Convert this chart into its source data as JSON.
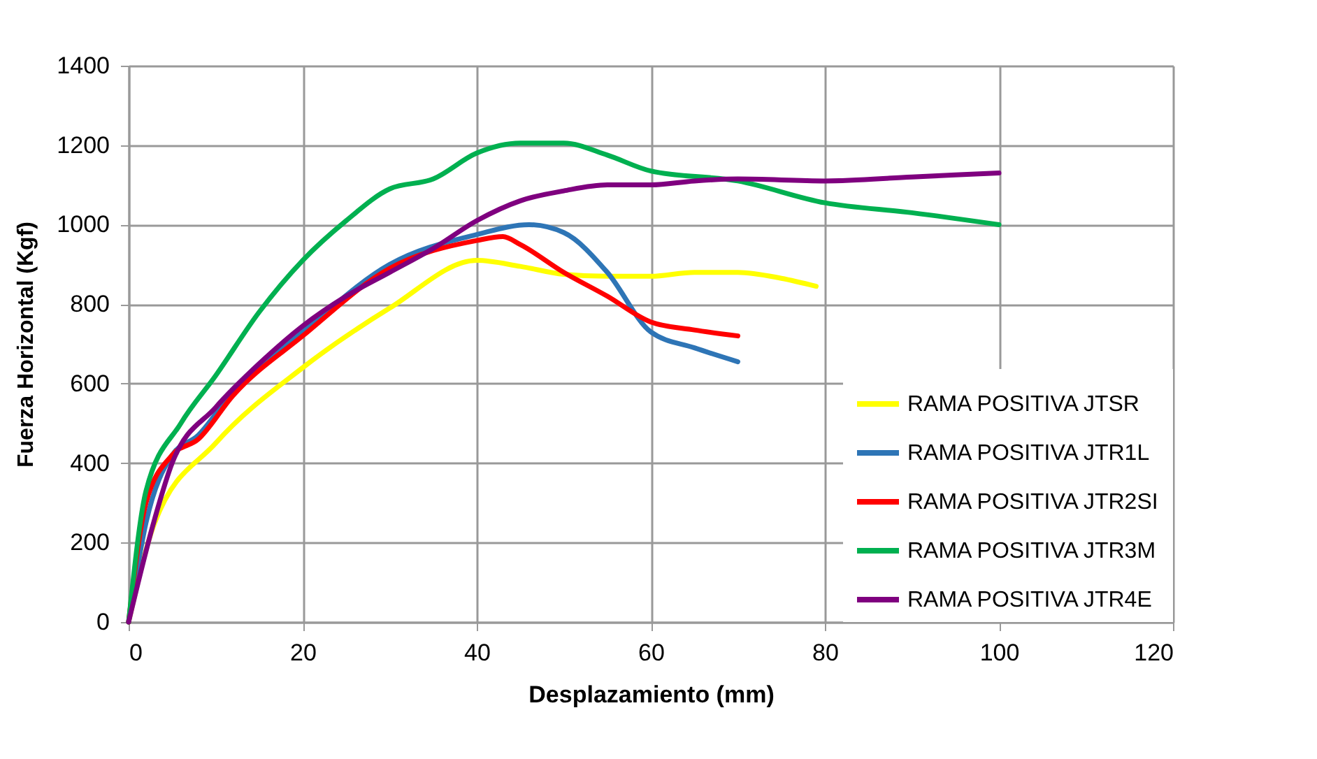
{
  "chart_data": {
    "type": "line",
    "xlabel": "Desplazamiento (mm)",
    "ylabel": "Fuerza Horizontal (Kgf)",
    "xlim": [
      0,
      120
    ],
    "xticks": [
      0,
      20,
      40,
      60,
      80,
      100,
      120
    ],
    "ylim": [
      0,
      1400
    ],
    "yticks": [
      0,
      200,
      400,
      600,
      800,
      1000,
      1200,
      1400
    ],
    "grid": true,
    "legend": "bottom right",
    "marker": "none",
    "line_style": "solid",
    "series": [
      {
        "name": "RAMA POSITIVA JTSR",
        "color": "#ffff00",
        "x": [
          0,
          3,
          10,
          20,
          30,
          40,
          45,
          50,
          55,
          60,
          65,
          70,
          75,
          79
        ],
        "values": [
          0,
          250,
          450,
          640,
          790,
          910,
          895,
          875,
          870,
          870,
          880,
          880,
          865,
          845
        ]
      },
      {
        "name": "RAMA POSITIVA JTR1L",
        "color": "#2e75b6",
        "x": [
          0,
          2,
          5,
          8,
          12,
          20,
          30,
          40,
          46,
          50,
          55,
          60,
          65,
          70
        ],
        "values": [
          0,
          250,
          420,
          470,
          580,
          730,
          900,
          975,
          1000,
          980,
          880,
          730,
          690,
          655
        ]
      },
      {
        "name": "RAMA POSITIVA JTR2SI",
        "color": "#ff0000",
        "x": [
          0,
          2,
          5,
          8,
          12,
          20,
          30,
          40,
          43,
          45,
          50,
          55,
          60,
          65,
          70
        ],
        "values": [
          0,
          300,
          420,
          460,
          570,
          720,
          890,
          960,
          970,
          950,
          880,
          820,
          755,
          735,
          720
        ]
      },
      {
        "name": "RAMA POSITIVA JTR3M",
        "color": "#00b050",
        "x": [
          0,
          2,
          6,
          10,
          15,
          20,
          25,
          30,
          35,
          40,
          45,
          50,
          55,
          60,
          70,
          80,
          90,
          100
        ],
        "values": [
          0,
          330,
          500,
          620,
          780,
          910,
          1010,
          1090,
          1115,
          1180,
          1205,
          1205,
          1175,
          1135,
          1110,
          1055,
          1030,
          1000
        ]
      },
      {
        "name": "RAMA POSITIVA JTR4E",
        "color": "#7f007f",
        "x": [
          0,
          3,
          5,
          10,
          15,
          20,
          25,
          30,
          35,
          40,
          45,
          50,
          55,
          60,
          65,
          70,
          80,
          90,
          100
        ],
        "values": [
          0,
          260,
          400,
          540,
          650,
          745,
          820,
          880,
          940,
          1010,
          1060,
          1085,
          1100,
          1100,
          1110,
          1115,
          1110,
          1120,
          1130
        ]
      }
    ]
  }
}
